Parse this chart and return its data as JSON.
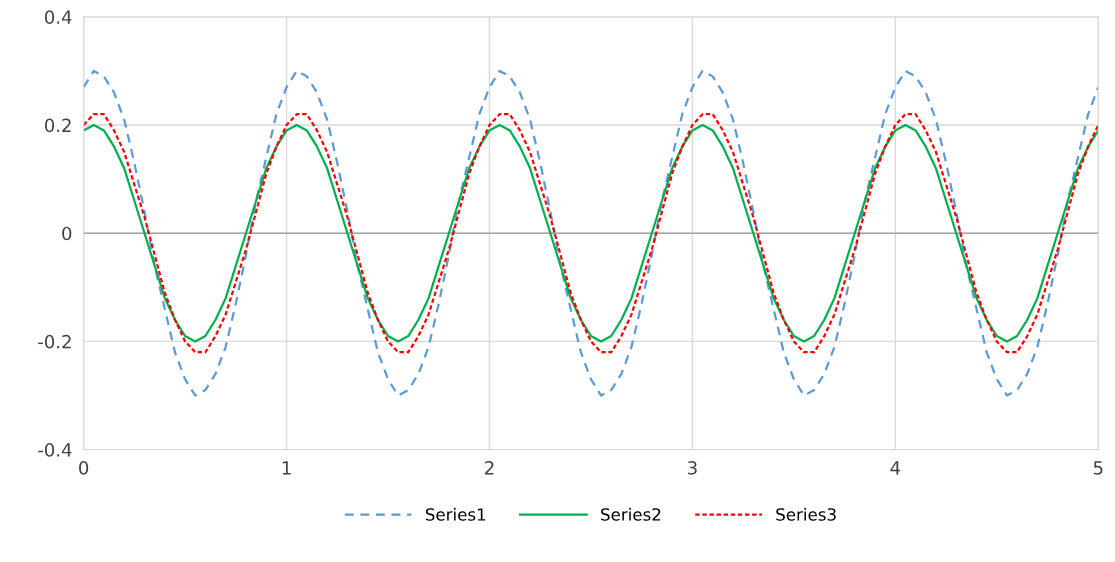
{
  "chart_data": {
    "type": "line",
    "x": [
      0,
      0.05,
      0.1,
      0.15,
      0.2,
      0.25,
      0.3,
      0.35,
      0.4,
      0.45,
      0.5,
      0.55,
      0.6,
      0.65,
      0.7,
      0.75,
      0.8,
      0.85,
      0.9,
      0.95,
      1,
      1.05,
      1.1,
      1.15,
      1.2,
      1.25,
      1.3,
      1.35,
      1.4,
      1.45,
      1.5,
      1.55,
      1.6,
      1.65,
      1.7,
      1.75,
      1.8,
      1.85,
      1.9,
      1.95,
      2,
      2.05,
      2.1,
      2.15,
      2.2,
      2.25,
      2.3,
      2.35,
      2.4,
      2.45,
      2.5,
      2.55,
      2.6,
      2.65,
      2.7,
      2.75,
      2.8,
      2.85,
      2.9,
      2.95,
      3,
      3.05,
      3.1,
      3.15,
      3.2,
      3.25,
      3.3,
      3.35,
      3.4,
      3.45,
      3.5,
      3.55,
      3.6,
      3.65,
      3.7,
      3.75,
      3.8,
      3.85,
      3.9,
      3.95,
      4,
      4.05,
      4.1,
      4.15,
      4.2,
      4.25,
      4.3,
      4.35,
      4.4,
      4.45,
      4.5,
      4.55,
      4.6,
      4.65,
      4.7,
      4.75,
      4.8,
      4.85,
      4.9,
      4.95,
      5
    ],
    "series": [
      {
        "name": "Series1",
        "color": "#5b9bd5",
        "line_style": "dashed",
        "values": [
          0.27,
          0.3,
          0.29,
          0.26,
          0.21,
          0.13,
          0.04,
          -0.06,
          -0.14,
          -0.22,
          -0.27,
          -0.3,
          -0.29,
          -0.26,
          -0.21,
          -0.13,
          -0.04,
          0.06,
          0.14,
          0.22,
          0.27,
          0.3,
          0.29,
          0.26,
          0.21,
          0.13,
          0.04,
          -0.06,
          -0.14,
          -0.22,
          -0.27,
          -0.3,
          -0.29,
          -0.26,
          -0.21,
          -0.13,
          -0.04,
          0.06,
          0.14,
          0.22,
          0.27,
          0.3,
          0.29,
          0.26,
          0.21,
          0.13,
          0.04,
          -0.06,
          -0.14,
          -0.22,
          -0.27,
          -0.3,
          -0.29,
          -0.26,
          -0.21,
          -0.13,
          -0.04,
          0.06,
          0.14,
          0.22,
          0.27,
          0.3,
          0.29,
          0.26,
          0.21,
          0.13,
          0.04,
          -0.06,
          -0.14,
          -0.22,
          -0.27,
          -0.3,
          -0.29,
          -0.26,
          -0.21,
          -0.13,
          -0.04,
          0.06,
          0.14,
          0.22,
          0.27,
          0.3,
          0.29,
          0.26,
          0.21,
          0.13,
          0.04,
          -0.06,
          -0.14,
          -0.22,
          -0.27,
          -0.3,
          -0.29,
          -0.26,
          -0.21,
          -0.13,
          -0.04,
          0.06,
          0.14,
          0.22,
          0.27
        ]
      },
      {
        "name": "Series2",
        "color": "#00b050",
        "line_style": "solid",
        "values": [
          0.19,
          0.2,
          0.19,
          0.16,
          0.12,
          0.06,
          0,
          -0.06,
          -0.12,
          -0.16,
          -0.19,
          -0.2,
          -0.19,
          -0.16,
          -0.12,
          -0.06,
          0,
          0.06,
          0.12,
          0.16,
          0.19,
          0.2,
          0.19,
          0.16,
          0.12,
          0.06,
          0,
          -0.06,
          -0.12,
          -0.16,
          -0.19,
          -0.2,
          -0.19,
          -0.16,
          -0.12,
          -0.06,
          0,
          0.06,
          0.12,
          0.16,
          0.19,
          0.2,
          0.19,
          0.16,
          0.12,
          0.06,
          0,
          -0.06,
          -0.12,
          -0.16,
          -0.19,
          -0.2,
          -0.19,
          -0.16,
          -0.12,
          -0.06,
          0,
          0.06,
          0.12,
          0.16,
          0.19,
          0.2,
          0.19,
          0.16,
          0.12,
          0.06,
          0,
          -0.06,
          -0.12,
          -0.16,
          -0.19,
          -0.2,
          -0.19,
          -0.16,
          -0.12,
          -0.06,
          0,
          0.06,
          0.12,
          0.16,
          0.19,
          0.2,
          0.19,
          0.16,
          0.12,
          0.06,
          0,
          -0.06,
          -0.12,
          -0.16,
          -0.19,
          -0.2,
          -0.19,
          -0.16,
          -0.12,
          -0.06,
          0,
          0.06,
          0.12,
          0.16,
          0.19
        ]
      },
      {
        "name": "Series3",
        "color": "#ff0000",
        "line_style": "dotted",
        "values": [
          0.2,
          0.22,
          0.22,
          0.19,
          0.15,
          0.09,
          0.03,
          -0.04,
          -0.11,
          -0.16,
          -0.2,
          -0.22,
          -0.22,
          -0.19,
          -0.15,
          -0.09,
          -0.03,
          0.04,
          0.11,
          0.16,
          0.2,
          0.22,
          0.22,
          0.19,
          0.15,
          0.09,
          0.03,
          -0.04,
          -0.11,
          -0.16,
          -0.2,
          -0.22,
          -0.22,
          -0.19,
          -0.15,
          -0.09,
          -0.03,
          0.04,
          0.11,
          0.16,
          0.2,
          0.22,
          0.22,
          0.19,
          0.15,
          0.09,
          0.03,
          -0.04,
          -0.11,
          -0.16,
          -0.2,
          -0.22,
          -0.22,
          -0.19,
          -0.15,
          -0.09,
          -0.03,
          0.04,
          0.11,
          0.16,
          0.2,
          0.22,
          0.22,
          0.19,
          0.15,
          0.09,
          0.03,
          -0.04,
          -0.11,
          -0.16,
          -0.2,
          -0.22,
          -0.22,
          -0.19,
          -0.15,
          -0.09,
          -0.03,
          0.04,
          0.11,
          0.16,
          0.2,
          0.22,
          0.22,
          0.19,
          0.15,
          0.09,
          0.03,
          -0.04,
          -0.11,
          -0.16,
          -0.2,
          -0.22,
          -0.22,
          -0.19,
          -0.15,
          -0.09,
          -0.03,
          0.04,
          0.11,
          0.16,
          0.2
        ]
      }
    ],
    "xlim": [
      0,
      5
    ],
    "xticks": [
      0,
      1,
      2,
      3,
      4,
      5
    ],
    "ylim": [
      -0.4,
      0.4
    ],
    "yticks": [
      -0.4,
      -0.2,
      0,
      0.2,
      0.4
    ],
    "grid": true,
    "legend": "bottom"
  }
}
